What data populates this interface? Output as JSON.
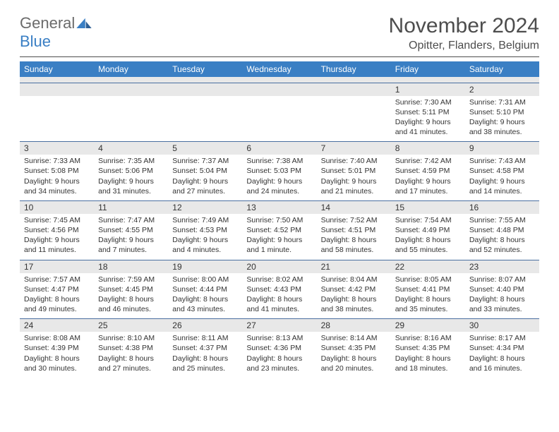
{
  "logo": {
    "text1": "General",
    "text2": "Blue"
  },
  "title": "November 2024",
  "location": "Opitter, Flanders, Belgium",
  "dayNames": [
    "Sunday",
    "Monday",
    "Tuesday",
    "Wednesday",
    "Thursday",
    "Friday",
    "Saturday"
  ],
  "colors": {
    "headerBar": "#3a7fc4",
    "bandGray": "#e8e8e8",
    "rule": "#4d4d4d",
    "rowBorder": "#4a6fa0"
  },
  "weeks": [
    [
      null,
      null,
      null,
      null,
      null,
      {
        "num": "1",
        "sunrise": "Sunrise: 7:30 AM",
        "sunset": "Sunset: 5:11 PM",
        "day1": "Daylight: 9 hours",
        "day2": "and 41 minutes."
      },
      {
        "num": "2",
        "sunrise": "Sunrise: 7:31 AM",
        "sunset": "Sunset: 5:10 PM",
        "day1": "Daylight: 9 hours",
        "day2": "and 38 minutes."
      }
    ],
    [
      {
        "num": "3",
        "sunrise": "Sunrise: 7:33 AM",
        "sunset": "Sunset: 5:08 PM",
        "day1": "Daylight: 9 hours",
        "day2": "and 34 minutes."
      },
      {
        "num": "4",
        "sunrise": "Sunrise: 7:35 AM",
        "sunset": "Sunset: 5:06 PM",
        "day1": "Daylight: 9 hours",
        "day2": "and 31 minutes."
      },
      {
        "num": "5",
        "sunrise": "Sunrise: 7:37 AM",
        "sunset": "Sunset: 5:04 PM",
        "day1": "Daylight: 9 hours",
        "day2": "and 27 minutes."
      },
      {
        "num": "6",
        "sunrise": "Sunrise: 7:38 AM",
        "sunset": "Sunset: 5:03 PM",
        "day1": "Daylight: 9 hours",
        "day2": "and 24 minutes."
      },
      {
        "num": "7",
        "sunrise": "Sunrise: 7:40 AM",
        "sunset": "Sunset: 5:01 PM",
        "day1": "Daylight: 9 hours",
        "day2": "and 21 minutes."
      },
      {
        "num": "8",
        "sunrise": "Sunrise: 7:42 AM",
        "sunset": "Sunset: 4:59 PM",
        "day1": "Daylight: 9 hours",
        "day2": "and 17 minutes."
      },
      {
        "num": "9",
        "sunrise": "Sunrise: 7:43 AM",
        "sunset": "Sunset: 4:58 PM",
        "day1": "Daylight: 9 hours",
        "day2": "and 14 minutes."
      }
    ],
    [
      {
        "num": "10",
        "sunrise": "Sunrise: 7:45 AM",
        "sunset": "Sunset: 4:56 PM",
        "day1": "Daylight: 9 hours",
        "day2": "and 11 minutes."
      },
      {
        "num": "11",
        "sunrise": "Sunrise: 7:47 AM",
        "sunset": "Sunset: 4:55 PM",
        "day1": "Daylight: 9 hours",
        "day2": "and 7 minutes."
      },
      {
        "num": "12",
        "sunrise": "Sunrise: 7:49 AM",
        "sunset": "Sunset: 4:53 PM",
        "day1": "Daylight: 9 hours",
        "day2": "and 4 minutes."
      },
      {
        "num": "13",
        "sunrise": "Sunrise: 7:50 AM",
        "sunset": "Sunset: 4:52 PM",
        "day1": "Daylight: 9 hours",
        "day2": "and 1 minute."
      },
      {
        "num": "14",
        "sunrise": "Sunrise: 7:52 AM",
        "sunset": "Sunset: 4:51 PM",
        "day1": "Daylight: 8 hours",
        "day2": "and 58 minutes."
      },
      {
        "num": "15",
        "sunrise": "Sunrise: 7:54 AM",
        "sunset": "Sunset: 4:49 PM",
        "day1": "Daylight: 8 hours",
        "day2": "and 55 minutes."
      },
      {
        "num": "16",
        "sunrise": "Sunrise: 7:55 AM",
        "sunset": "Sunset: 4:48 PM",
        "day1": "Daylight: 8 hours",
        "day2": "and 52 minutes."
      }
    ],
    [
      {
        "num": "17",
        "sunrise": "Sunrise: 7:57 AM",
        "sunset": "Sunset: 4:47 PM",
        "day1": "Daylight: 8 hours",
        "day2": "and 49 minutes."
      },
      {
        "num": "18",
        "sunrise": "Sunrise: 7:59 AM",
        "sunset": "Sunset: 4:45 PM",
        "day1": "Daylight: 8 hours",
        "day2": "and 46 minutes."
      },
      {
        "num": "19",
        "sunrise": "Sunrise: 8:00 AM",
        "sunset": "Sunset: 4:44 PM",
        "day1": "Daylight: 8 hours",
        "day2": "and 43 minutes."
      },
      {
        "num": "20",
        "sunrise": "Sunrise: 8:02 AM",
        "sunset": "Sunset: 4:43 PM",
        "day1": "Daylight: 8 hours",
        "day2": "and 41 minutes."
      },
      {
        "num": "21",
        "sunrise": "Sunrise: 8:04 AM",
        "sunset": "Sunset: 4:42 PM",
        "day1": "Daylight: 8 hours",
        "day2": "and 38 minutes."
      },
      {
        "num": "22",
        "sunrise": "Sunrise: 8:05 AM",
        "sunset": "Sunset: 4:41 PM",
        "day1": "Daylight: 8 hours",
        "day2": "and 35 minutes."
      },
      {
        "num": "23",
        "sunrise": "Sunrise: 8:07 AM",
        "sunset": "Sunset: 4:40 PM",
        "day1": "Daylight: 8 hours",
        "day2": "and 33 minutes."
      }
    ],
    [
      {
        "num": "24",
        "sunrise": "Sunrise: 8:08 AM",
        "sunset": "Sunset: 4:39 PM",
        "day1": "Daylight: 8 hours",
        "day2": "and 30 minutes."
      },
      {
        "num": "25",
        "sunrise": "Sunrise: 8:10 AM",
        "sunset": "Sunset: 4:38 PM",
        "day1": "Daylight: 8 hours",
        "day2": "and 27 minutes."
      },
      {
        "num": "26",
        "sunrise": "Sunrise: 8:11 AM",
        "sunset": "Sunset: 4:37 PM",
        "day1": "Daylight: 8 hours",
        "day2": "and 25 minutes."
      },
      {
        "num": "27",
        "sunrise": "Sunrise: 8:13 AM",
        "sunset": "Sunset: 4:36 PM",
        "day1": "Daylight: 8 hours",
        "day2": "and 23 minutes."
      },
      {
        "num": "28",
        "sunrise": "Sunrise: 8:14 AM",
        "sunset": "Sunset: 4:35 PM",
        "day1": "Daylight: 8 hours",
        "day2": "and 20 minutes."
      },
      {
        "num": "29",
        "sunrise": "Sunrise: 8:16 AM",
        "sunset": "Sunset: 4:35 PM",
        "day1": "Daylight: 8 hours",
        "day2": "and 18 minutes."
      },
      {
        "num": "30",
        "sunrise": "Sunrise: 8:17 AM",
        "sunset": "Sunset: 4:34 PM",
        "day1": "Daylight: 8 hours",
        "day2": "and 16 minutes."
      }
    ]
  ]
}
